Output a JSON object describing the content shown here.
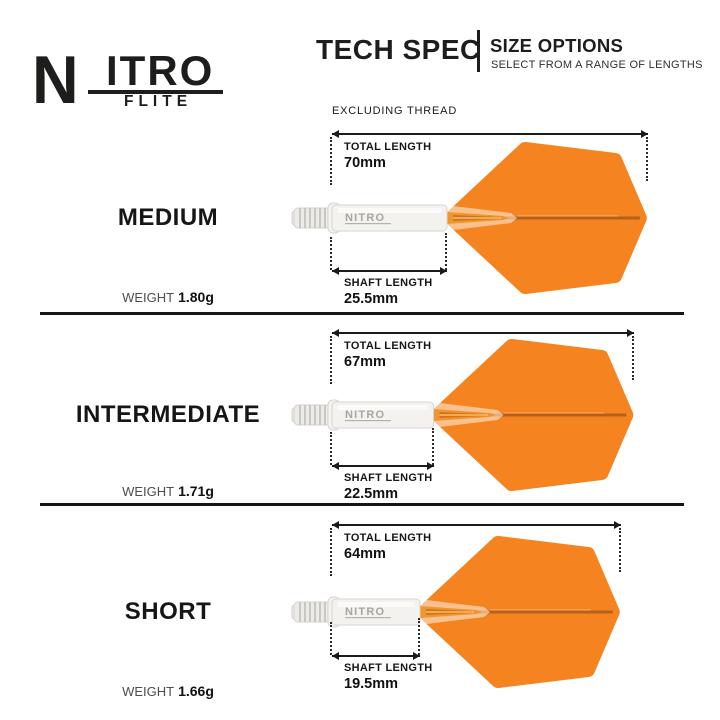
{
  "logo": {
    "big_letter": "N",
    "rest": "ITRO",
    "sub": "FLITE"
  },
  "header": {
    "title": "TECH SPEC",
    "section": "SIZE OPTIONS",
    "subtitle": "SELECT FROM A RANGE OF LENGTHS"
  },
  "note": "EXCLUDING THREAD",
  "labels": {
    "total": "TOTAL LENGTH",
    "shaft": "SHAFT LENGTH",
    "weight": "WEIGHT"
  },
  "shaft_print": "NITRO",
  "rows": [
    {
      "name": "MEDIUM",
      "weight": "1.80g",
      "total": "70mm",
      "total_mm": 70,
      "shaft": "25.5mm",
      "shaft_mm": 25.5
    },
    {
      "name": "INTERMEDIATE",
      "weight": "1.71g",
      "total": "67mm",
      "total_mm": 67,
      "shaft": "22.5mm",
      "shaft_mm": 22.5
    },
    {
      "name": "SHORT",
      "weight": "1.66g",
      "total": "64mm",
      "total_mm": 64,
      "shaft": "19.5mm",
      "shaft_mm": 19.5
    }
  ],
  "colors": {
    "flight_orange": "#F5831F",
    "flight_seam": "#B5611A",
    "seam_highlight": "#FFB06A",
    "core_orange": "#EF9025",
    "core_dark": "#C9701A",
    "shaft_white": "#F4F2EF",
    "shaft_outline": "#D8D5D1",
    "thread_grey": "#ECEBE8",
    "ink": "#1A1A1A"
  }
}
